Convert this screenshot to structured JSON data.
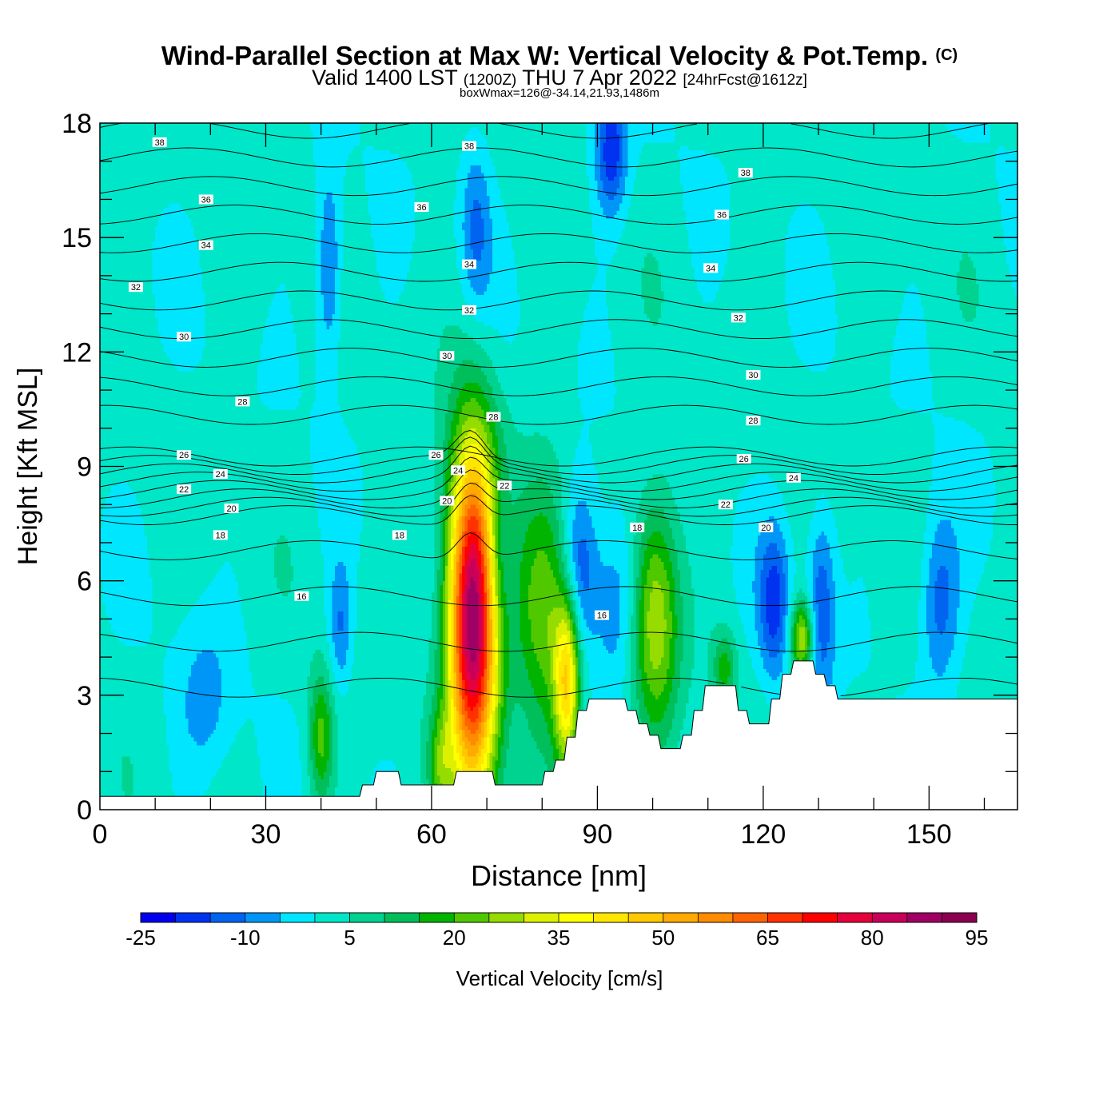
{
  "header": {
    "title": "Wind-Parallel Section at Max W: Vertical Velocity & Pot.Temp.",
    "copyright": "(C)",
    "valid_prefix": "Valid 1400 LST",
    "valid_utc": "(1200Z)",
    "valid_date": "THU 7 Apr 2022",
    "forecast": "[24hrFcst@1612z]",
    "boxwmax": "boxWmax=126@-34.14,21.93,1486m"
  },
  "chart_data": {
    "type": "heatmap",
    "xlabel": "Distance [nm]",
    "ylabel": "Height [Kft MSL]",
    "xlim": [
      0,
      166
    ],
    "ylim": [
      0,
      18
    ],
    "xticks": [
      0,
      30,
      60,
      90,
      120,
      150
    ],
    "yticks": [
      0,
      3,
      6,
      9,
      12,
      15,
      18
    ],
    "colorbar": {
      "label": "Vertical Velocity [cm/s]",
      "levels": [
        -25,
        -20,
        -15,
        -10,
        -5,
        0,
        5,
        10,
        15,
        20,
        25,
        30,
        35,
        40,
        45,
        50,
        55,
        60,
        65,
        70,
        75,
        80,
        85,
        90,
        95
      ],
      "tick_labels": [
        "-25",
        "-10",
        "5",
        "20",
        "35",
        "50",
        "65",
        "80",
        "95"
      ],
      "tick_values": [
        -25,
        -10,
        5,
        20,
        35,
        50,
        65,
        80,
        95
      ],
      "colors": [
        "#0000ee",
        "#0032f0",
        "#0064f0",
        "#0096f8",
        "#00e6ff",
        "#00e6c8",
        "#00d290",
        "#00be5a",
        "#00b400",
        "#50c800",
        "#96dc00",
        "#dcf000",
        "#ffff00",
        "#ffe600",
        "#ffc800",
        "#ffaa00",
        "#ff8c00",
        "#ff6400",
        "#ff3200",
        "#ff0000",
        "#e6003c",
        "#c8005a",
        "#a00064",
        "#8c0050"
      ]
    },
    "terrain_kft": [
      [
        0,
        0.35
      ],
      [
        47,
        0.35
      ],
      [
        47.5,
        0.65
      ],
      [
        49.5,
        0.65
      ],
      [
        50,
        1.0
      ],
      [
        54,
        1.0
      ],
      [
        54.5,
        0.65
      ],
      [
        64,
        0.65
      ],
      [
        64.5,
        1.0
      ],
      [
        71,
        1.0
      ],
      [
        71.5,
        0.65
      ],
      [
        80,
        0.65
      ],
      [
        80.5,
        1.0
      ],
      [
        82,
        1.0
      ],
      [
        82.5,
        1.3
      ],
      [
        84,
        1.3
      ],
      [
        84.5,
        1.9
      ],
      [
        86,
        1.9
      ],
      [
        86.5,
        2.6
      ],
      [
        88,
        2.6
      ],
      [
        88.5,
        2.9
      ],
      [
        95,
        2.9
      ],
      [
        95.5,
        2.6
      ],
      [
        97,
        2.6
      ],
      [
        97.5,
        2.25
      ],
      [
        99,
        2.25
      ],
      [
        99.5,
        1.95
      ],
      [
        101,
        1.95
      ],
      [
        101.5,
        1.6
      ],
      [
        105,
        1.6
      ],
      [
        105.5,
        1.95
      ],
      [
        107,
        1.95
      ],
      [
        107.5,
        2.6
      ],
      [
        109,
        2.6
      ],
      [
        109.5,
        3.25
      ],
      [
        115,
        3.25
      ],
      [
        115.5,
        2.6
      ],
      [
        117,
        2.6
      ],
      [
        117.5,
        2.25
      ],
      [
        121,
        2.25
      ],
      [
        121.5,
        2.9
      ],
      [
        123,
        2.9
      ],
      [
        123.5,
        3.55
      ],
      [
        125,
        3.55
      ],
      [
        125.5,
        3.9
      ],
      [
        129,
        3.9
      ],
      [
        129.5,
        3.55
      ],
      [
        131,
        3.55
      ],
      [
        131.5,
        3.25
      ],
      [
        133,
        3.25
      ],
      [
        133.5,
        2.9
      ],
      [
        166,
        2.9
      ]
    ],
    "updrafts": [
      {
        "x": 67.5,
        "y": 5.0,
        "peak_cms": 90,
        "half_width_nm": 3.2,
        "half_height_kft": 3.2
      },
      {
        "x": 80.5,
        "y": 5.3,
        "peak_cms": 25,
        "half_width_nm": 4.0,
        "half_height_kft": 2.4
      },
      {
        "x": 84.5,
        "y": 3.3,
        "peak_cms": 38,
        "half_width_nm": 1.6,
        "half_height_kft": 1.6
      },
      {
        "x": 100.5,
        "y": 5.1,
        "peak_cms": 28,
        "half_width_nm": 3.0,
        "half_height_kft": 2.2
      },
      {
        "x": 127,
        "y": 4.5,
        "peak_cms": 30,
        "half_width_nm": 1.5,
        "half_height_kft": 0.7
      },
      {
        "x": 40,
        "y": 1.9,
        "peak_cms": 20,
        "half_width_nm": 1.6,
        "half_height_kft": 1.2
      },
      {
        "x": 61.5,
        "y": 1.2,
        "peak_cms": 15,
        "half_width_nm": 1.5,
        "half_height_kft": 0.9
      },
      {
        "x": 113,
        "y": 3.7,
        "peak_cms": 15,
        "half_width_nm": 1.5,
        "half_height_kft": 0.7
      }
    ],
    "downdrafts": [
      {
        "x": 72,
        "y": 6.5,
        "peak_cms": -14,
        "half_width_nm": 2.0,
        "half_height_kft": 1.4
      },
      {
        "x": 86.5,
        "y": 6.3,
        "peak_cms": -22,
        "half_width_nm": 2.5,
        "half_height_kft": 1.6
      },
      {
        "x": 93.5,
        "y": 5.4,
        "peak_cms": -12,
        "half_width_nm": 3.0,
        "half_height_kft": 1.6
      },
      {
        "x": 122,
        "y": 5.4,
        "peak_cms": -18,
        "half_width_nm": 2.0,
        "half_height_kft": 1.4
      },
      {
        "x": 130.5,
        "y": 5.4,
        "peak_cms": -16,
        "half_width_nm": 1.8,
        "half_height_kft": 1.8
      },
      {
        "x": 152,
        "y": 5.5,
        "peak_cms": -15,
        "half_width_nm": 2.5,
        "half_height_kft": 1.6
      },
      {
        "x": 43.5,
        "y": 4.8,
        "peak_cms": -12,
        "half_width_nm": 1.5,
        "half_height_kft": 1.2
      },
      {
        "x": 41.5,
        "y": 14.2,
        "peak_cms": -14,
        "half_width_nm": 1.6,
        "half_height_kft": 1.8
      },
      {
        "x": 68,
        "y": 15.3,
        "peak_cms": -12,
        "half_width_nm": 2.0,
        "half_height_kft": 1.6
      },
      {
        "x": 92.5,
        "y": 17.3,
        "peak_cms": -20,
        "half_width_nm": 2.0,
        "half_height_kft": 1.2
      },
      {
        "x": 19,
        "y": 2.8,
        "peak_cms": -8,
        "half_width_nm": 3.5,
        "half_height_kft": 1.5
      }
    ],
    "isentrope_levels": [
      16,
      17,
      18,
      19,
      20,
      21,
      22,
      23,
      24,
      25,
      26,
      27,
      28,
      29,
      30,
      31,
      32,
      33,
      34,
      35,
      36,
      37,
      38
    ],
    "isentrope_labels": [
      {
        "text": "38",
        "x": 10.8,
        "y": 17.5
      },
      {
        "text": "38",
        "x": 66.8,
        "y": 17.4
      },
      {
        "text": "38",
        "x": 116.8,
        "y": 16.7
      },
      {
        "text": "36",
        "x": 19.2,
        "y": 16.0
      },
      {
        "text": "36",
        "x": 58.2,
        "y": 15.8
      },
      {
        "text": "36",
        "x": 112.5,
        "y": 15.6
      },
      {
        "text": "34",
        "x": 19.2,
        "y": 14.8
      },
      {
        "text": "34",
        "x": 66.8,
        "y": 14.3
      },
      {
        "text": "34",
        "x": 110.5,
        "y": 14.2
      },
      {
        "text": "32",
        "x": 6.5,
        "y": 13.7
      },
      {
        "text": "32",
        "x": 66.8,
        "y": 13.1
      },
      {
        "text": "32",
        "x": 115.5,
        "y": 12.9
      },
      {
        "text": "30",
        "x": 15.2,
        "y": 12.4
      },
      {
        "text": "30",
        "x": 62.8,
        "y": 11.9
      },
      {
        "text": "30",
        "x": 118.2,
        "y": 11.4
      },
      {
        "text": "28",
        "x": 25.8,
        "y": 10.7
      },
      {
        "text": "28",
        "x": 71.2,
        "y": 10.3
      },
      {
        "text": "28",
        "x": 118.2,
        "y": 10.2
      },
      {
        "text": "26",
        "x": 15.2,
        "y": 9.3
      },
      {
        "text": "26",
        "x": 60.8,
        "y": 9.3
      },
      {
        "text": "26",
        "x": 116.5,
        "y": 9.2
      },
      {
        "text": "24",
        "x": 21.8,
        "y": 8.8
      },
      {
        "text": "24",
        "x": 64.8,
        "y": 8.9
      },
      {
        "text": "24",
        "x": 125.5,
        "y": 8.7
      },
      {
        "text": "22",
        "x": 15.2,
        "y": 8.4
      },
      {
        "text": "22",
        "x": 73.2,
        "y": 8.5
      },
      {
        "text": "22",
        "x": 113.2,
        "y": 8.0
      },
      {
        "text": "20",
        "x": 23.8,
        "y": 7.9
      },
      {
        "text": "20",
        "x": 62.8,
        "y": 8.1
      },
      {
        "text": "20",
        "x": 120.5,
        "y": 7.4
      },
      {
        "text": "18",
        "x": 21.8,
        "y": 7.2
      },
      {
        "text": "18",
        "x": 54.2,
        "y": 7.2
      },
      {
        "text": "18",
        "x": 97.2,
        "y": 7.4
      },
      {
        "text": "16",
        "x": 36.5,
        "y": 5.6
      },
      {
        "text": "16",
        "x": 90.8,
        "y": 5.1
      }
    ]
  }
}
